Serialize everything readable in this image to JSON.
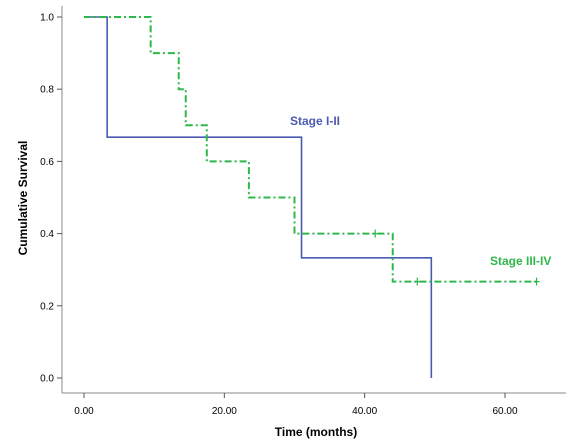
{
  "chart_data": {
    "type": "line",
    "subtype": "kaplan-meier-step",
    "title": "",
    "xlabel": "Time (months)",
    "ylabel": "Cumulative Survival",
    "xlim": [
      0,
      66
    ],
    "ylim": [
      0,
      1.0
    ],
    "x_ticks": [
      0,
      20,
      40,
      60
    ],
    "x_tick_labels": [
      "0.00",
      "20.00",
      "40.00",
      "60.00"
    ],
    "y_ticks": [
      0,
      0.2,
      0.4,
      0.6,
      0.8,
      1.0
    ],
    "y_tick_labels": [
      "0.0",
      "0.2",
      "0.4",
      "0.6",
      "0.8",
      "1.0"
    ],
    "grid": false,
    "legend": "none",
    "series": [
      {
        "name": "Stage I-II",
        "color": "#4a5ab0",
        "line_style": "solid",
        "steps": [
          [
            0,
            1.0
          ],
          [
            3.3,
            0.667
          ],
          [
            31,
            0.333
          ],
          [
            49.5,
            0.0
          ]
        ],
        "end_x": 49.5,
        "censored": []
      },
      {
        "name": "Stage III-IV",
        "color": "#2eb84a",
        "line_style": "dash-dot",
        "steps": [
          [
            0,
            1.0
          ],
          [
            9.5,
            0.9
          ],
          [
            13.5,
            0.8
          ],
          [
            14.5,
            0.7
          ],
          [
            17.5,
            0.6
          ],
          [
            23.5,
            0.5
          ],
          [
            30,
            0.4
          ],
          [
            44,
            0.267
          ]
        ],
        "end_x": 64.5,
        "censored": [
          {
            "x": 41.5,
            "y": 0.4
          },
          {
            "x": 47.5,
            "y": 0.267
          },
          {
            "x": 64.5,
            "y": 0.267
          }
        ]
      }
    ]
  }
}
